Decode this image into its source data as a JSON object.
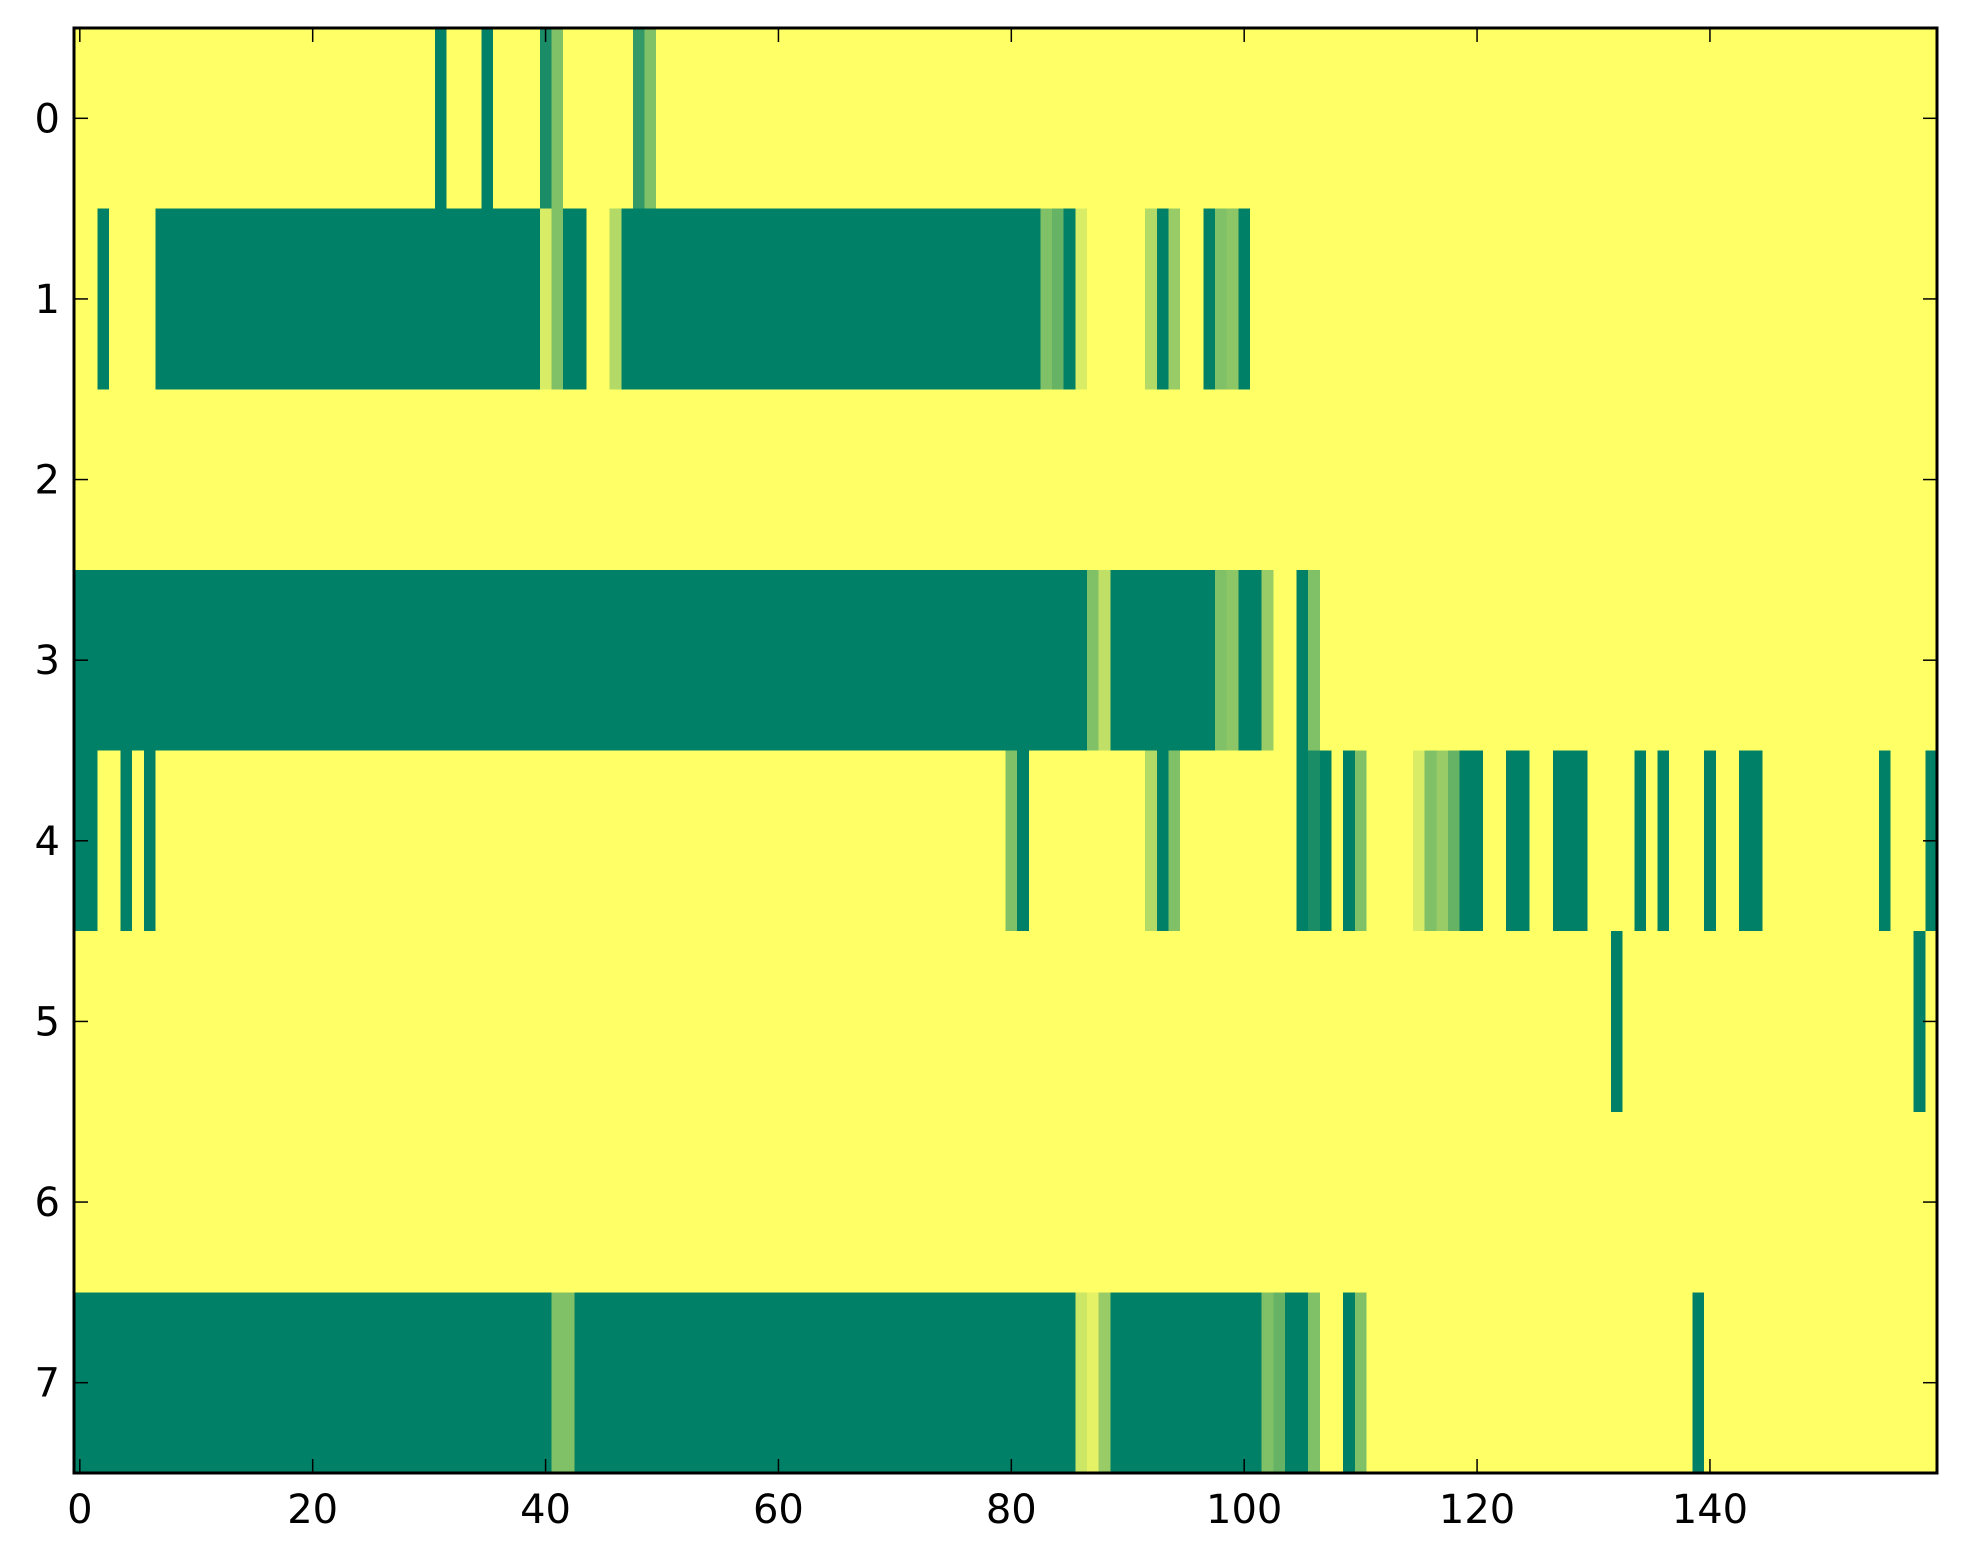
{
  "chart_data": {
    "type": "heatmap",
    "title": "",
    "xlabel": "",
    "ylabel": "",
    "x_range": [
      -0.5,
      159.5
    ],
    "y_range": [
      -0.5,
      7.5
    ],
    "x_ticks": [
      0,
      20,
      40,
      60,
      80,
      100,
      120,
      140
    ],
    "y_ticks": [
      0,
      1,
      2,
      3,
      4,
      5,
      6,
      7
    ],
    "x_tick_labels": [
      "0",
      "20",
      "40",
      "60",
      "80",
      "100",
      "120",
      "140"
    ],
    "y_tick_labels": [
      "0",
      "1",
      "2",
      "3",
      "4",
      "5",
      "6",
      "7"
    ],
    "grid": false,
    "colormap": "summer (reversed): 0 = yellow, 1 = green",
    "colors": {
      "low": "#ffff66",
      "high": "#008066",
      "background": "#ffffff",
      "frame": "#000000"
    },
    "default_value": 0,
    "rows": [
      {
        "row": 0,
        "segments": [
          [
            31,
            31,
            1
          ],
          [
            35,
            35,
            1
          ],
          [
            40,
            40,
            0.9
          ],
          [
            41,
            41,
            0.5
          ],
          [
            48,
            48,
            0.8
          ],
          [
            49,
            49,
            0.5
          ]
        ]
      },
      {
        "row": 1,
        "segments": [
          [
            2,
            2,
            1
          ],
          [
            7,
            39,
            1
          ],
          [
            40,
            40,
            0.15
          ],
          [
            41,
            41,
            0.5
          ],
          [
            42,
            43,
            1
          ],
          [
            46,
            46,
            0.3
          ],
          [
            47,
            82,
            1
          ],
          [
            83,
            83,
            0.5
          ],
          [
            84,
            84,
            0.6
          ],
          [
            85,
            85,
            1
          ],
          [
            86,
            86,
            0.15
          ],
          [
            92,
            92,
            0.3
          ],
          [
            93,
            93,
            1
          ],
          [
            94,
            94,
            0.4
          ],
          [
            97,
            97,
            1
          ],
          [
            98,
            98,
            0.5
          ],
          [
            99,
            99,
            0.45
          ],
          [
            100,
            100,
            1
          ]
        ]
      },
      {
        "row": 2,
        "segments": []
      },
      {
        "row": 3,
        "segments": [
          [
            0,
            86,
            1
          ],
          [
            87,
            87,
            0.5
          ],
          [
            88,
            88,
            0.25
          ],
          [
            89,
            97,
            1
          ],
          [
            98,
            98,
            0.5
          ],
          [
            99,
            99,
            0.45
          ],
          [
            100,
            101,
            1
          ],
          [
            102,
            102,
            0.4
          ],
          [
            105,
            105,
            1
          ],
          [
            106,
            106,
            0.5
          ]
        ]
      },
      {
        "row": 4,
        "segments": [
          [
            0,
            1,
            1
          ],
          [
            4,
            4,
            1
          ],
          [
            6,
            6,
            1
          ],
          [
            80,
            80,
            0.5
          ],
          [
            81,
            81,
            1
          ],
          [
            92,
            92,
            0.3
          ],
          [
            93,
            93,
            1
          ],
          [
            94,
            94,
            0.5
          ],
          [
            105,
            105,
            1
          ],
          [
            106,
            106,
            0.9
          ],
          [
            107,
            107,
            1
          ],
          [
            109,
            109,
            1
          ],
          [
            110,
            110,
            0.5
          ],
          [
            115,
            115,
            0.15
          ],
          [
            116,
            116,
            0.5
          ],
          [
            117,
            117,
            0.4
          ],
          [
            118,
            118,
            0.6
          ],
          [
            119,
            120,
            1
          ],
          [
            123,
            124,
            1
          ],
          [
            127,
            129,
            1
          ],
          [
            134,
            134,
            1
          ],
          [
            136,
            136,
            1
          ],
          [
            140,
            140,
            1
          ],
          [
            143,
            144,
            1
          ],
          [
            155,
            155,
            1
          ],
          [
            159,
            159,
            1
          ]
        ]
      },
      {
        "row": 5,
        "segments": [
          [
            132,
            132,
            1
          ],
          [
            158,
            158,
            1
          ]
        ]
      },
      {
        "row": 6,
        "segments": []
      },
      {
        "row": 7,
        "segments": [
          [
            0,
            40,
            1
          ],
          [
            41,
            42,
            0.5
          ],
          [
            43,
            85,
            1
          ],
          [
            86,
            86,
            0.2
          ],
          [
            87,
            87,
            0.1
          ],
          [
            88,
            88,
            0.4
          ],
          [
            89,
            101,
            1
          ],
          [
            102,
            102,
            0.5
          ],
          [
            103,
            103,
            0.6
          ],
          [
            104,
            105,
            1
          ],
          [
            106,
            106,
            0.5
          ],
          [
            109,
            109,
            1
          ],
          [
            110,
            110,
            0.5
          ],
          [
            139,
            139,
            1
          ]
        ]
      }
    ]
  }
}
